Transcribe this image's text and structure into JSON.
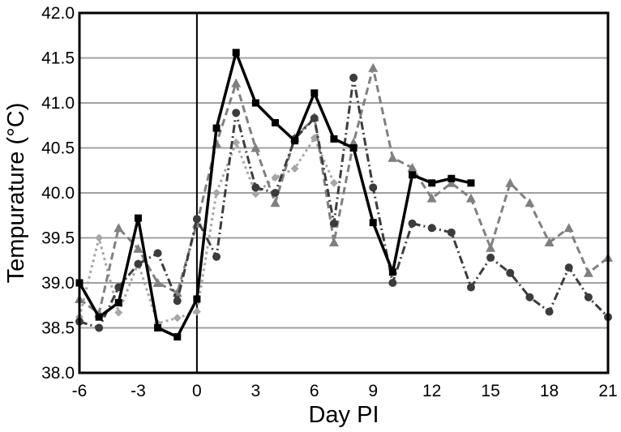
{
  "chart_data": {
    "type": "line",
    "xlabel": "Day PI",
    "ylabel": "Tempurature (°C)",
    "xlim": [
      -6,
      21
    ],
    "ylim": [
      38.0,
      42.0
    ],
    "x_ticks": [
      -6,
      -3,
      0,
      3,
      6,
      9,
      12,
      15,
      18,
      21
    ],
    "x_tick_labels": [
      "-6",
      "-3",
      "0",
      "3",
      "6",
      "9",
      "12",
      "15",
      "18",
      "21"
    ],
    "y_ticks": [
      38.0,
      38.5,
      39.0,
      39.5,
      40.0,
      40.5,
      41.0,
      41.5,
      42.0
    ],
    "y_tick_labels": [
      "38.0",
      "38.5",
      "39.0",
      "39.5",
      "40.0",
      "40.5",
      "41.0",
      "41.5",
      "42.0"
    ],
    "grid": "horizontal",
    "vertical_reference_line_x": 0,
    "series": [
      {
        "marker": "square",
        "color": "#000000",
        "dash": "solid",
        "x": [
          -6,
          -5,
          -4,
          -3,
          -2,
          -1,
          0,
          1,
          2,
          3,
          4,
          5,
          6,
          7,
          8,
          9,
          10,
          11,
          12,
          13,
          14
        ],
        "y": [
          39.0,
          38.62,
          38.78,
          39.72,
          38.5,
          38.4,
          38.82,
          40.72,
          41.56,
          41.0,
          40.78,
          40.58,
          41.11,
          40.6,
          40.5,
          39.67,
          39.12,
          40.2,
          40.11,
          40.16,
          40.11
        ]
      },
      {
        "marker": "circle",
        "color": "#3c3c3c",
        "dash": "dashdot",
        "x": [
          -6,
          -5,
          -4,
          -3,
          -2,
          -1,
          0,
          1,
          2,
          3,
          4,
          5,
          6,
          7,
          8,
          9,
          10,
          11,
          12,
          13,
          14,
          15,
          16,
          17,
          18,
          19,
          20,
          21
        ],
        "y": [
          38.57,
          38.5,
          38.95,
          39.21,
          39.33,
          38.8,
          39.71,
          39.29,
          40.89,
          40.06,
          40.0,
          40.6,
          40.83,
          39.66,
          41.28,
          40.06,
          39.0,
          39.66,
          39.61,
          39.56,
          38.95,
          39.28,
          39.11,
          38.84,
          38.68,
          39.17,
          38.84,
          38.62
        ]
      },
      {
        "marker": "triangle",
        "color": "#808080",
        "dash": "dashed",
        "x": [
          -6,
          -5,
          -4,
          -3,
          -2,
          -1,
          0,
          1,
          2,
          3,
          4,
          5,
          6,
          7,
          8,
          9,
          10,
          11,
          12,
          13,
          14,
          15,
          16,
          17,
          18,
          19,
          20,
          21
        ],
        "y": [
          38.82,
          38.66,
          39.61,
          39.38,
          39.0,
          38.89,
          39.66,
          40.55,
          41.22,
          40.5,
          39.89,
          40.61,
          40.84,
          39.45,
          40.56,
          41.39,
          40.39,
          40.28,
          39.94,
          40.11,
          39.94,
          39.39,
          40.11,
          39.89,
          39.45,
          39.61,
          39.11,
          39.28
        ]
      },
      {
        "marker": "diamond",
        "color": "#a6a6a6",
        "dash": "dotted",
        "x": [
          -6,
          -5,
          -4,
          -3,
          -2,
          -1,
          0,
          1,
          2,
          3,
          4,
          5,
          6,
          7
        ],
        "y": [
          38.62,
          39.5,
          38.67,
          39.22,
          38.55,
          38.61,
          38.68,
          40.0,
          40.56,
          39.99,
          40.17,
          40.27,
          40.61,
          40.11
        ]
      }
    ]
  }
}
